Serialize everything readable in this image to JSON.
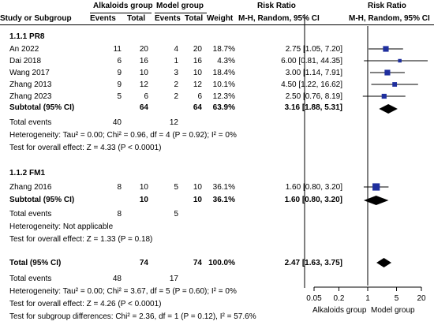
{
  "header": {
    "group1": "Alkaloids group",
    "group2": "Model group",
    "rr_title": "Risk Ratio",
    "rr_plot_title": "Risk Ratio",
    "study_col": "Study or Subgroup",
    "events1": "Events",
    "total1": "Total",
    "events2": "Events",
    "total2": "Total",
    "weight": "Weight",
    "method": "M-H, Random, 95% CI",
    "method_plot": "M-H, Random, 95% CI"
  },
  "subgroups": [
    {
      "title": "1.1.1 PR8",
      "studies": [
        {
          "name": "An 2022",
          "e1": "11",
          "t1": "20",
          "e2": "4",
          "t2": "20",
          "weight": "18.7%",
          "ci": "2.75 [1.05, 7.20]"
        },
        {
          "name": "Dai 2018",
          "e1": "6",
          "t1": "16",
          "e2": "1",
          "t2": "16",
          "weight": "4.3%",
          "ci": "6.00 [0.81, 44.35]"
        },
        {
          "name": "Wang 2017",
          "e1": "9",
          "t1": "10",
          "e2": "3",
          "t2": "10",
          "weight": "18.4%",
          "ci": "3.00 [1.14, 7.91]"
        },
        {
          "name": "Zhang 2013",
          "e1": "9",
          "t1": "12",
          "e2": "2",
          "t2": "12",
          "weight": "10.1%",
          "ci": "4.50 [1.22, 16.62]"
        },
        {
          "name": "Zhang 2023",
          "e1": "5",
          "t1": "6",
          "e2": "2",
          "t2": "6",
          "weight": "12.3%",
          "ci": "2.50 [0.76, 8.19]"
        }
      ],
      "subtotal": {
        "label": "Subtotal (95% CI)",
        "t1": "64",
        "t2": "64",
        "weight": "63.9%",
        "ci": "3.16 [1.88, 5.31]"
      },
      "total_events": {
        "label": "Total events",
        "e1": "40",
        "e2": "12"
      },
      "heterogeneity": "Heterogeneity: Tau² = 0.00; Chi² = 0.96, df = 4 (P = 0.92); I² = 0%",
      "overall_effect": "Test for overall effect: Z = 4.33 (P < 0.0001)"
    },
    {
      "title": "1.1.2 FM1",
      "studies": [
        {
          "name": "Zhang 2016",
          "e1": "8",
          "t1": "10",
          "e2": "5",
          "t2": "10",
          "weight": "36.1%",
          "ci": "1.60 [0.80, 3.20]"
        }
      ],
      "subtotal": {
        "label": "Subtotal (95% CI)",
        "t1": "10",
        "t2": "10",
        "weight": "36.1%",
        "ci": "1.60 [0.80, 3.20]"
      },
      "total_events": {
        "label": "Total events",
        "e1": "8",
        "e2": "5"
      },
      "heterogeneity": "Heterogeneity: Not applicable",
      "overall_effect": "Test for overall effect: Z = 1.33 (P = 0.18)"
    }
  ],
  "total": {
    "label": "Total (95% CI)",
    "t1": "74",
    "t2": "74",
    "weight": "100.0%",
    "ci": "2.47 [1.63, 3.75]",
    "events_label": "Total events",
    "e1": "48",
    "e2": "17",
    "heterogeneity": "Heterogeneity: Tau² = 0.00; Chi² = 3.67, df = 5 (P = 0.60); I² = 0%",
    "overall_effect": "Test for overall effect: Z = 4.26 (P < 0.0001)",
    "subgroup_diff": "Test for subgroup differences: Chi² = 2.36, df = 1 (P = 0.12), I² = 57.6%"
  },
  "axis": {
    "ticks": [
      "0.05",
      "0.2",
      "1",
      "5",
      "20"
    ],
    "left_label": "Alkaloids group",
    "right_label": "Model group"
  },
  "colors": {
    "study_marker": "#1f2f9e",
    "diamond": "#000000"
  },
  "chart_data": {
    "type": "forest",
    "scale": "log",
    "xlim": [
      0.05,
      20
    ],
    "tick_values": [
      0.05,
      0.2,
      1,
      5,
      20
    ],
    "reference_line": 1,
    "studies": [
      {
        "name": "An 2022",
        "rr": 2.75,
        "lo": 1.05,
        "hi": 7.2,
        "weight": 18.7
      },
      {
        "name": "Dai 2018",
        "rr": 6.0,
        "lo": 0.81,
        "hi": 44.35,
        "weight": 4.3
      },
      {
        "name": "Wang 2017",
        "rr": 3.0,
        "lo": 1.14,
        "hi": 7.91,
        "weight": 18.4
      },
      {
        "name": "Zhang 2013",
        "rr": 4.5,
        "lo": 1.22,
        "hi": 16.62,
        "weight": 10.1
      },
      {
        "name": "Zhang 2023",
        "rr": 2.5,
        "lo": 0.76,
        "hi": 8.19,
        "weight": 12.3
      },
      {
        "name": "Zhang 2016",
        "rr": 1.6,
        "lo": 0.8,
        "hi": 3.2,
        "weight": 36.1
      }
    ],
    "summaries": [
      {
        "name": "Subtotal 1.1.1 PR8",
        "rr": 3.16,
        "lo": 1.88,
        "hi": 5.31
      },
      {
        "name": "Subtotal 1.1.2 FM1",
        "rr": 1.6,
        "lo": 0.8,
        "hi": 3.2
      },
      {
        "name": "Total",
        "rr": 2.47,
        "lo": 1.63,
        "hi": 3.75
      }
    ]
  }
}
